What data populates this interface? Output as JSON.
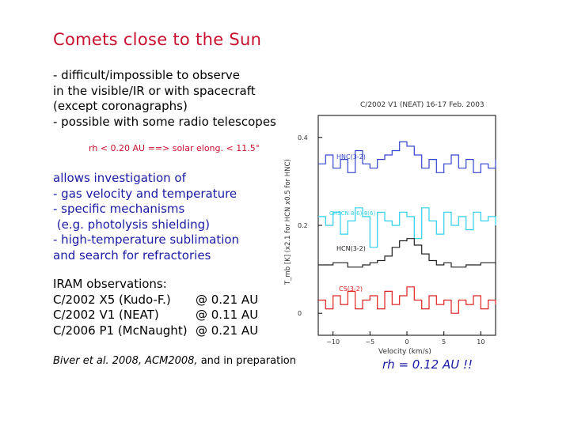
{
  "title": "Comets close to the Sun",
  "intro_lines": [
    "- difficult/impossible to observe",
    "in the visible/IR or with spacecraft",
    "(except coronagraphs)",
    "- possible with some radio telescopes"
  ],
  "elongation_note": "rh < 0.20 AU ==> solar elong. < 11.5°",
  "investigation_lines": [
    "allows investigation of",
    "- gas velocity and temperature",
    "- specific mechanisms",
    " (e.g. photolysis shielding)",
    "- high-temperature sublimation",
    "and search for refractories"
  ],
  "observations": {
    "heading": "IRAM observations:",
    "rows": [
      {
        "comet": "C/2002 X5 (Kudo-F.)",
        "distance": "@ 0.21 AU"
      },
      {
        "comet": "C/2002 V1 (NEAT)",
        "distance": "@ 0.11 AU"
      },
      {
        "comet": "C/2006 P1 (McNaught)",
        "distance": "@ 0.21 AU"
      }
    ]
  },
  "citation": {
    "authors": "Biver et al. 2008,",
    "venue": "ACM2008,",
    "rest": "and in preparation"
  },
  "rh_label": "rh = 0.12 AU  !!",
  "chart_data": {
    "type": "line",
    "title": "C/2002 V1 (NEAT)  16-17 Feb. 2003",
    "xlabel": "Velocity (km/s)",
    "ylabel": "T_mb [K]  (x2.1 for HCN  x0.5 for HNC)",
    "xlim": [
      -12,
      12
    ],
    "ylim": [
      -0.05,
      0.45
    ],
    "xticks": [
      -10,
      -5,
      0,
      5,
      10
    ],
    "yticks": [
      0,
      0.2,
      0.4
    ],
    "ytick_labels": [
      "0",
      "0.2",
      "0.4"
    ],
    "series": [
      {
        "name": "HNC(3-2)",
        "color": "#3344cc",
        "offset": 0.3,
        "x": [
          -12,
          -11,
          -10,
          -9,
          -8,
          -7,
          -6,
          -5,
          -4,
          -3,
          -2,
          -1,
          0,
          1,
          2,
          3,
          4,
          5,
          6,
          7,
          8,
          9,
          10,
          11,
          12
        ],
        "y": [
          0.04,
          0.06,
          0.03,
          0.05,
          0.02,
          0.07,
          0.04,
          0.03,
          0.05,
          0.06,
          0.07,
          0.09,
          0.08,
          0.06,
          0.03,
          0.05,
          0.02,
          0.04,
          0.06,
          0.03,
          0.05,
          0.02,
          0.04,
          0.03,
          0.05
        ]
      },
      {
        "name": "CH3CN 8(6)-8(6)",
        "color": "#2fd0e8",
        "offset": 0.2,
        "x": [
          -12,
          -11,
          -10,
          -9,
          -8,
          -7,
          -6,
          -5,
          -4,
          -3,
          -2,
          -1,
          0,
          1,
          2,
          3,
          4,
          5,
          6,
          7,
          8,
          9,
          10,
          11,
          12
        ],
        "y": [
          0.02,
          0.0,
          0.03,
          -0.02,
          0.01,
          0.04,
          0.02,
          -0.05,
          0.03,
          0.01,
          0.0,
          0.03,
          0.02,
          -0.03,
          0.04,
          0.01,
          -0.02,
          0.03,
          0.0,
          0.02,
          -0.01,
          0.03,
          0.01,
          0.02,
          0.0
        ]
      },
      {
        "name": "HCN(3-2)",
        "color": "#222222",
        "offset": 0.11,
        "x": [
          -12,
          -10,
          -8,
          -6,
          -5,
          -4,
          -3,
          -2,
          -1,
          0,
          1,
          2,
          3,
          4,
          5,
          6,
          8,
          10,
          12
        ],
        "y": [
          0.0,
          0.005,
          -0.005,
          0.0,
          0.005,
          0.01,
          0.02,
          0.04,
          0.055,
          0.06,
          0.045,
          0.025,
          0.01,
          0.0,
          0.005,
          -0.005,
          0.0,
          0.005,
          0.0
        ]
      },
      {
        "name": "CS(3-2)",
        "color": "#e02020",
        "offset": 0.02,
        "x": [
          -12,
          -11,
          -10,
          -9,
          -8,
          -7,
          -6,
          -5,
          -4,
          -3,
          -2,
          -1,
          0,
          1,
          2,
          3,
          4,
          5,
          6,
          7,
          8,
          9,
          10,
          11,
          12
        ],
        "y": [
          0.01,
          -0.01,
          0.02,
          0.0,
          0.03,
          -0.01,
          0.01,
          0.02,
          -0.01,
          0.03,
          0.0,
          0.02,
          0.04,
          0.01,
          -0.01,
          0.02,
          0.0,
          0.01,
          -0.02,
          0.01,
          0.0,
          0.02,
          -0.01,
          0.01,
          0.0
        ]
      }
    ]
  }
}
